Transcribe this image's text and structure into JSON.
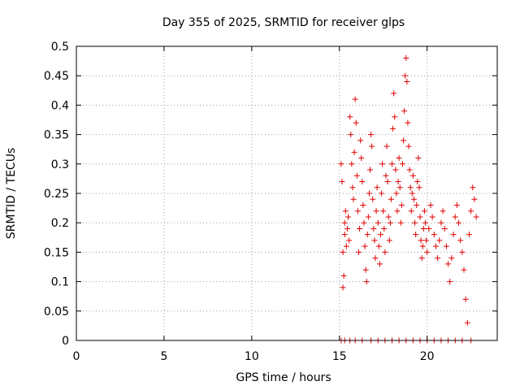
{
  "chart_data": {
    "type": "scatter",
    "title": "Day 355 of 2025, SRMTID for receiver glps",
    "xlabel": "GPS time / hours",
    "ylabel": "SRMTID / TECUs",
    "xlim": [
      0,
      24
    ],
    "ylim": [
      0,
      0.5
    ],
    "xticks": [
      0,
      5,
      10,
      15,
      20
    ],
    "xtick_labels": [
      "0",
      "5",
      "10",
      "15",
      "20"
    ],
    "yticks": [
      0,
      0.05,
      0.1,
      0.15,
      0.2,
      0.25,
      0.3,
      0.35,
      0.4,
      0.45,
      0.5
    ],
    "ytick_labels": [
      "0",
      "0.05",
      "0.1",
      "0.15",
      "0.2",
      "0.25",
      "0.3",
      "0.35",
      "0.4",
      "0.45",
      "0.5"
    ],
    "grid": true,
    "marker": "+",
    "marker_color": "#e00000",
    "series": [
      {
        "points": [
          [
            15.1,
            0.3
          ],
          [
            15.15,
            0.27
          ],
          [
            15.2,
            0.15
          ],
          [
            15.2,
            0.09
          ],
          [
            15.25,
            0.11
          ],
          [
            15.3,
            0.2
          ],
          [
            15.3,
            0.18
          ],
          [
            15.35,
            0.22
          ],
          [
            15.4,
            0.16
          ],
          [
            15.45,
            0.19
          ],
          [
            15.5,
            0.21
          ],
          [
            15.55,
            0.17
          ],
          [
            15.6,
            0.38
          ],
          [
            15.65,
            0.35
          ],
          [
            15.7,
            0.3
          ],
          [
            15.75,
            0.26
          ],
          [
            15.8,
            0.24
          ],
          [
            15.85,
            0.32
          ],
          [
            15.9,
            0.41
          ],
          [
            15.95,
            0.37
          ],
          [
            16.0,
            0.28
          ],
          [
            16.05,
            0.22
          ],
          [
            16.1,
            0.15
          ],
          [
            16.15,
            0.19
          ],
          [
            16.2,
            0.34
          ],
          [
            16.25,
            0.31
          ],
          [
            16.3,
            0.27
          ],
          [
            16.35,
            0.23
          ],
          [
            16.4,
            0.2
          ],
          [
            16.45,
            0.16
          ],
          [
            16.5,
            0.12
          ],
          [
            16.55,
            0.1
          ],
          [
            16.6,
            0.18
          ],
          [
            16.65,
            0.21
          ],
          [
            16.7,
            0.25
          ],
          [
            16.75,
            0.29
          ],
          [
            16.8,
            0.35
          ],
          [
            16.85,
            0.33
          ],
          [
            16.9,
            0.24
          ],
          [
            16.95,
            0.19
          ],
          [
            17.0,
            0.17
          ],
          [
            17.05,
            0.14
          ],
          [
            17.1,
            0.22
          ],
          [
            17.15,
            0.26
          ],
          [
            17.2,
            0.2
          ],
          [
            17.25,
            0.16
          ],
          [
            17.3,
            0.13
          ],
          [
            17.35,
            0.18
          ],
          [
            17.4,
            0.25
          ],
          [
            17.45,
            0.3
          ],
          [
            17.5,
            0.22
          ],
          [
            17.55,
            0.19
          ],
          [
            17.6,
            0.15
          ],
          [
            17.65,
            0.28
          ],
          [
            17.7,
            0.33
          ],
          [
            17.75,
            0.27
          ],
          [
            17.8,
            0.21
          ],
          [
            17.85,
            0.17
          ],
          [
            17.9,
            0.2
          ],
          [
            17.95,
            0.24
          ],
          [
            18.0,
            0.3
          ],
          [
            18.05,
            0.36
          ],
          [
            18.1,
            0.42
          ],
          [
            18.15,
            0.38
          ],
          [
            18.2,
            0.29
          ],
          [
            18.25,
            0.25
          ],
          [
            18.3,
            0.22
          ],
          [
            18.35,
            0.27
          ],
          [
            18.4,
            0.31
          ],
          [
            18.45,
            0.26
          ],
          [
            18.5,
            0.2
          ],
          [
            18.55,
            0.23
          ],
          [
            18.6,
            0.3
          ],
          [
            18.65,
            0.34
          ],
          [
            18.7,
            0.39
          ],
          [
            18.75,
            0.45
          ],
          [
            18.8,
            0.48
          ],
          [
            18.85,
            0.44
          ],
          [
            18.9,
            0.37
          ],
          [
            18.95,
            0.33
          ],
          [
            19.0,
            0.29
          ],
          [
            19.05,
            0.26
          ],
          [
            19.1,
            0.22
          ],
          [
            19.15,
            0.25
          ],
          [
            19.2,
            0.28
          ],
          [
            19.25,
            0.24
          ],
          [
            19.3,
            0.2
          ],
          [
            19.35,
            0.18
          ],
          [
            19.4,
            0.23
          ],
          [
            19.45,
            0.27
          ],
          [
            19.5,
            0.31
          ],
          [
            19.55,
            0.26
          ],
          [
            19.6,
            0.21
          ],
          [
            19.65,
            0.17
          ],
          [
            19.7,
            0.14
          ],
          [
            19.75,
            0.16
          ],
          [
            19.8,
            0.19
          ],
          [
            19.85,
            0.22
          ],
          [
            19.9,
            0.2
          ],
          [
            19.95,
            0.17
          ],
          [
            20.0,
            0.15
          ],
          [
            20.1,
            0.19
          ],
          [
            20.2,
            0.23
          ],
          [
            20.3,
            0.21
          ],
          [
            20.4,
            0.18
          ],
          [
            20.5,
            0.16
          ],
          [
            20.6,
            0.14
          ],
          [
            20.7,
            0.17
          ],
          [
            20.8,
            0.2
          ],
          [
            20.9,
            0.22
          ],
          [
            21.0,
            0.19
          ],
          [
            21.1,
            0.16
          ],
          [
            21.2,
            0.13
          ],
          [
            21.3,
            0.1
          ],
          [
            21.4,
            0.14
          ],
          [
            21.5,
            0.18
          ],
          [
            21.6,
            0.21
          ],
          [
            21.7,
            0.23
          ],
          [
            21.8,
            0.2
          ],
          [
            21.9,
            0.17
          ],
          [
            22.0,
            0.15
          ],
          [
            22.1,
            0.12
          ],
          [
            22.2,
            0.07
          ],
          [
            22.3,
            0.03
          ],
          [
            22.4,
            0.18
          ],
          [
            22.5,
            0.22
          ],
          [
            22.6,
            0.26
          ],
          [
            22.7,
            0.24
          ],
          [
            22.8,
            0.21
          ]
        ]
      },
      {
        "points": [
          [
            15.1,
            0
          ],
          [
            15.3,
            0
          ],
          [
            15.6,
            0
          ],
          [
            15.9,
            0
          ],
          [
            16.3,
            0
          ],
          [
            16.8,
            0
          ],
          [
            17.2,
            0
          ],
          [
            17.6,
            0
          ],
          [
            18.0,
            0
          ],
          [
            18.4,
            0
          ],
          [
            18.8,
            0
          ],
          [
            19.2,
            0
          ],
          [
            19.6,
            0
          ],
          [
            20.0,
            0
          ],
          [
            20.4,
            0
          ],
          [
            20.8,
            0
          ],
          [
            21.2,
            0
          ],
          [
            21.6,
            0
          ],
          [
            22.0,
            0
          ],
          [
            22.5,
            0
          ]
        ]
      }
    ]
  }
}
